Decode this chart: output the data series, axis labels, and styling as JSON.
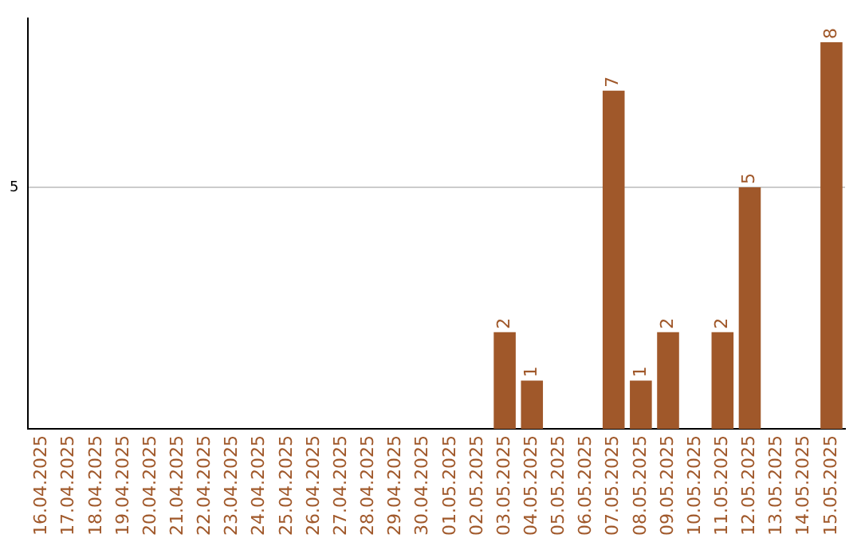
{
  "chart_data": {
    "type": "bar",
    "categories": [
      "16.04.2025",
      "17.04.2025",
      "18.04.2025",
      "19.04.2025",
      "20.04.2025",
      "21.04.2025",
      "22.04.2025",
      "23.04.2025",
      "24.04.2025",
      "25.04.2025",
      "26.04.2025",
      "27.04.2025",
      "28.04.2025",
      "29.04.2025",
      "30.04.2025",
      "01.05.2025",
      "02.05.2025",
      "03.05.2025",
      "04.05.2025",
      "05.05.2025",
      "06.05.2025",
      "07.05.2025",
      "08.05.2025",
      "09.05.2025",
      "10.05.2025",
      "11.05.2025",
      "12.05.2025",
      "13.05.2025",
      "14.05.2025",
      "15.05.2025"
    ],
    "values": [
      null,
      null,
      null,
      null,
      null,
      null,
      null,
      null,
      null,
      null,
      null,
      null,
      null,
      null,
      null,
      null,
      null,
      2,
      1,
      null,
      null,
      7,
      1,
      2,
      null,
      2,
      5,
      null,
      null,
      8
    ],
    "data_labels": true,
    "color": "#a0582a",
    "ylim": [
      0,
      8.5
    ],
    "yticks": [
      5
    ],
    "grid": "y"
  }
}
